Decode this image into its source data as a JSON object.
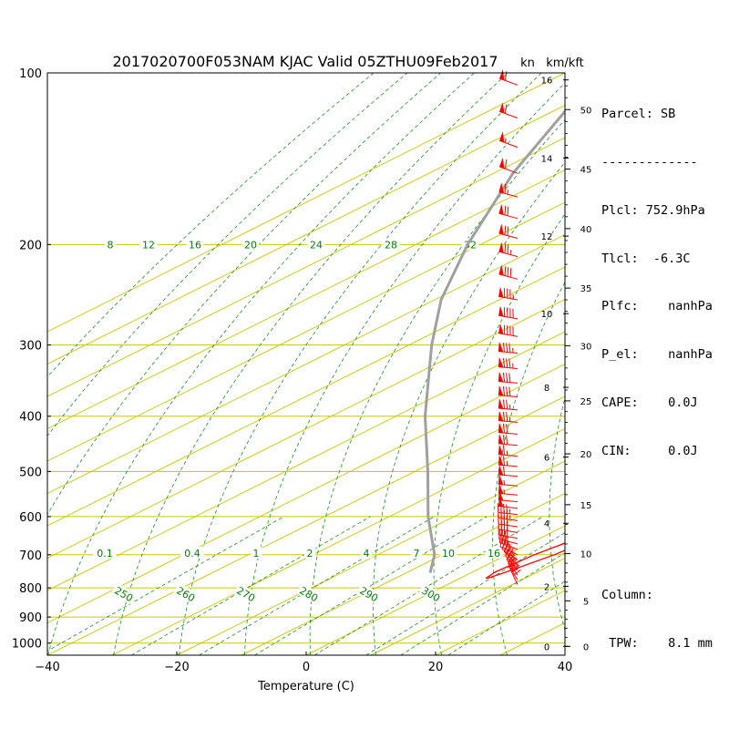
{
  "chart_data": {
    "type": "skew-t",
    "title": "2017020700F053NAM KJAC Valid 05ZTHU09Feb2017",
    "xlabel": "Temperature (C)",
    "x_ticks": [
      "−40",
      "−20",
      "0",
      "20",
      "40"
    ],
    "xlim": [
      -40,
      40
    ],
    "pressure_range_hpa": [
      1050,
      100
    ],
    "pressure_ticks": [
      1000,
      900,
      800,
      700,
      600,
      500,
      400,
      300,
      200,
      100
    ],
    "altitude_axis_labels": {
      "left": "kn",
      "right": "km/kft"
    },
    "km_ticks": [
      "0",
      "2",
      "4",
      "6",
      "8",
      "10",
      "12",
      "14",
      "16"
    ],
    "kft_ticks": [
      "0",
      "5",
      "10",
      "15",
      "20",
      "25",
      "30",
      "35",
      "40",
      "45",
      "50"
    ],
    "colors": {
      "temperature": "#ff0000",
      "dewpoint": "#ff0000",
      "isotherm": "#c8c800",
      "dry_adiabat": "#008000",
      "mixing_ratio": "#008000",
      "parcel": "#a0a0a0",
      "wind_barb": "#ff0000"
    },
    "isotherm_labels": [
      "8",
      "12",
      "16",
      "20",
      "24",
      "28",
      "32"
    ],
    "mixing_ratio_labels": [
      "0.1",
      "0.4",
      "1",
      "2",
      "4",
      "7",
      "10",
      "16"
    ],
    "dry_adiabat_labels": [
      "250",
      "260",
      "270",
      "280",
      "290",
      "300"
    ],
    "temperature_profile": [
      [
        770,
        4.2
      ],
      [
        750,
        5.2
      ],
      [
        700,
        7.3
      ],
      [
        650,
        8.5
      ],
      [
        600,
        8.0
      ],
      [
        550,
        5.0
      ],
      [
        500,
        1.0
      ],
      [
        460,
        -3.5
      ],
      [
        450,
        -6.5
      ],
      [
        400,
        -13.5
      ],
      [
        380,
        -15.5
      ],
      [
        330,
        -22.0
      ],
      [
        300,
        -27.0
      ],
      [
        250,
        -37.0
      ],
      [
        220,
        -42.0
      ],
      [
        200,
        -49.5
      ],
      [
        175,
        -51.0
      ],
      [
        160,
        -43.0
      ],
      [
        150,
        -34.0
      ],
      [
        125,
        -21.0
      ],
      [
        100,
        -16.5
      ]
    ],
    "dewpoint_profile": [
      [
        770,
        4.0
      ],
      [
        750,
        3.5
      ],
      [
        700,
        4.2
      ],
      [
        650,
        6.0
      ],
      [
        600,
        5.5
      ],
      [
        550,
        2.5
      ],
      [
        500,
        -4.5
      ],
      [
        460,
        -11.5
      ],
      [
        450,
        -13.0
      ],
      [
        400,
        -19.5
      ],
      [
        380,
        -22.0
      ],
      [
        330,
        -29.0
      ],
      [
        300,
        -31.0
      ],
      [
        250,
        -41.0
      ],
      [
        220,
        -43.0
      ],
      [
        200,
        -47.0
      ],
      [
        175,
        -52.0
      ],
      [
        160,
        -41.5
      ],
      [
        150,
        -82.0
      ],
      [
        100,
        -100.0
      ]
    ],
    "parcel_profile": [
      [
        752.9,
        -6.3
      ],
      [
        700,
        -11.2
      ],
      [
        600,
        -24.0
      ],
      [
        500,
        -38.0
      ],
      [
        400,
        -55.5
      ],
      [
        300,
        -76.5
      ],
      [
        250,
        -89.0
      ],
      [
        200,
        -102.0
      ],
      [
        150,
        -117.0
      ],
      [
        100,
        -135.0
      ]
    ],
    "wind_barbs": [
      {
        "p": 790,
        "dir": 335,
        "kn": 40
      },
      {
        "p": 775,
        "dir": 330,
        "kn": 40
      },
      {
        "p": 760,
        "dir": 325,
        "kn": 35
      },
      {
        "p": 745,
        "dir": 320,
        "kn": 35
      },
      {
        "p": 730,
        "dir": 315,
        "kn": 30
      },
      {
        "p": 715,
        "dir": 305,
        "kn": 30
      },
      {
        "p": 700,
        "dir": 295,
        "kn": 30
      },
      {
        "p": 685,
        "dir": 290,
        "kn": 35
      },
      {
        "p": 670,
        "dir": 285,
        "kn": 35
      },
      {
        "p": 655,
        "dir": 280,
        "kn": 40
      },
      {
        "p": 640,
        "dir": 280,
        "kn": 40
      },
      {
        "p": 625,
        "dir": 278,
        "kn": 40
      },
      {
        "p": 610,
        "dir": 278,
        "kn": 45
      },
      {
        "p": 595,
        "dir": 276,
        "kn": 45
      },
      {
        "p": 580,
        "dir": 276,
        "kn": 50
      },
      {
        "p": 565,
        "dir": 275,
        "kn": 50
      },
      {
        "p": 550,
        "dir": 275,
        "kn": 55
      },
      {
        "p": 530,
        "dir": 275,
        "kn": 55
      },
      {
        "p": 510,
        "dir": 275,
        "kn": 60
      },
      {
        "p": 490,
        "dir": 275,
        "kn": 65
      },
      {
        "p": 470,
        "dir": 275,
        "kn": 65
      },
      {
        "p": 450,
        "dir": 275,
        "kn": 70
      },
      {
        "p": 430,
        "dir": 275,
        "kn": 70
      },
      {
        "p": 410,
        "dir": 275,
        "kn": 75
      },
      {
        "p": 390,
        "dir": 275,
        "kn": 75
      },
      {
        "p": 370,
        "dir": 275,
        "kn": 80
      },
      {
        "p": 350,
        "dir": 275,
        "kn": 80
      },
      {
        "p": 330,
        "dir": 275,
        "kn": 85
      },
      {
        "p": 310,
        "dir": 275,
        "kn": 85
      },
      {
        "p": 290,
        "dir": 280,
        "kn": 90
      },
      {
        "p": 270,
        "dir": 280,
        "kn": 90
      },
      {
        "p": 250,
        "dir": 280,
        "kn": 85
      },
      {
        "p": 230,
        "dir": 285,
        "kn": 80
      },
      {
        "p": 210,
        "dir": 285,
        "kn": 75
      },
      {
        "p": 195,
        "dir": 285,
        "kn": 70
      },
      {
        "p": 180,
        "dir": 285,
        "kn": 70
      },
      {
        "p": 165,
        "dir": 285,
        "kn": 65
      },
      {
        "p": 150,
        "dir": 290,
        "kn": 60
      },
      {
        "p": 135,
        "dir": 290,
        "kn": 55
      },
      {
        "p": 120,
        "dir": 290,
        "kn": 60
      },
      {
        "p": 105,
        "dir": 290,
        "kn": 60
      }
    ]
  },
  "info": {
    "parcel": "Parcel: SB",
    "divider": "-------------",
    "plcl": "Plcl: 752.9hPa",
    "tlcl": "Tlcl:  -6.3C",
    "plfc": "Plfc:    nanhPa",
    "p_el": "P_el:    nanhPa",
    "cape": "CAPE:    0.0J",
    "cin": "CIN:     0.0J",
    "column": "Column:",
    "tpw": " TPW:    8.1 mm"
  }
}
